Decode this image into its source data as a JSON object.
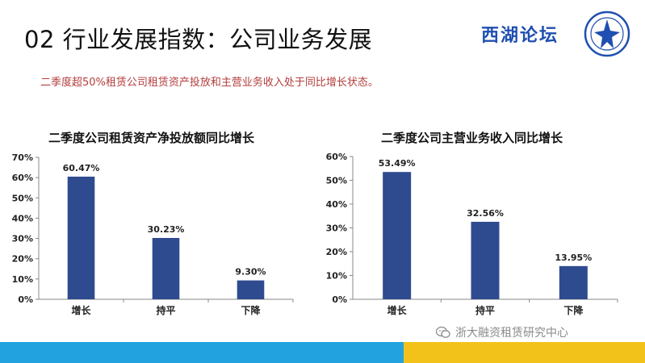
{
  "slide": {
    "title": "02 行业发展指数：公司业务发展",
    "summary": "二季度超50%租赁公司租赁资产投放和主营业务收入处于同比增长状态。",
    "logo_text": "西湖论坛",
    "watermark": "浙大融资租赁研究中心"
  },
  "colors": {
    "bar": "#2f4b8f",
    "accent_red": "#b43d3d",
    "footer_blue": "#22a3df",
    "footer_yellow": "#f2c21b"
  },
  "chart_data": [
    {
      "type": "bar",
      "title": "二季度公司租赁资产净投放额同比增长",
      "categories": [
        "增长",
        "持平",
        "下降"
      ],
      "values": [
        60.47,
        30.23,
        9.3
      ],
      "data_labels": [
        "60.47%",
        "30.23%",
        "9.30%"
      ],
      "ylim": [
        0,
        70
      ],
      "yticks": [
        0,
        10,
        20,
        30,
        40,
        50,
        60,
        70
      ],
      "ytick_labels": [
        "0%",
        "10%",
        "20%",
        "30%",
        "40%",
        "50%",
        "60%",
        "70%"
      ],
      "grid": false,
      "legend": "none"
    },
    {
      "type": "bar",
      "title": "二季度公司主营业务收入同比增长",
      "categories": [
        "增长",
        "持平",
        "下降"
      ],
      "values": [
        53.49,
        32.56,
        13.95
      ],
      "data_labels": [
        "53.49%",
        "32.56%",
        "13.95%"
      ],
      "ylim": [
        0,
        60
      ],
      "yticks": [
        0,
        10,
        20,
        30,
        40,
        50,
        60
      ],
      "ytick_labels": [
        "0%",
        "10%",
        "20%",
        "30%",
        "40%",
        "50%",
        "60%"
      ],
      "grid": false,
      "legend": "none"
    }
  ]
}
